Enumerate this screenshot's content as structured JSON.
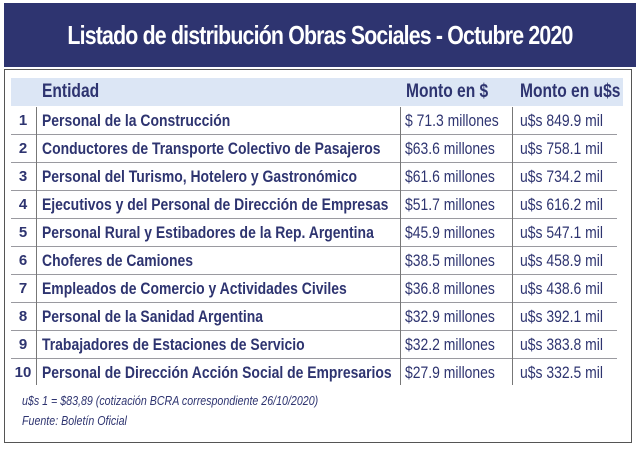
{
  "title": "Listado de distribución Obras Sociales - Octubre 2020",
  "table": {
    "headers": {
      "entity": "Entidad",
      "ars": "Monto en $",
      "usd": "Monto en u$s"
    },
    "rows": [
      {
        "num": "1",
        "name": "Personal de la Construcción",
        "ars": "$ 71.3 millones",
        "usd": "u$s 849.9 mil"
      },
      {
        "num": "2",
        "name": "Conductores de Transporte Colectivo de Pasajeros",
        "ars": "$63.6 millones",
        "usd": "u$s 758.1 mil"
      },
      {
        "num": "3",
        "name": "Personal del Turismo, Hotelero y Gastronómico",
        "ars": "$61.6 millones",
        "usd": "u$s 734.2 mil"
      },
      {
        "num": "4",
        "name": "Ejecutivos y del Personal de Dirección de Empresas",
        "ars": "$51.7 millones",
        "usd": "u$s 616.2 mil"
      },
      {
        "num": "5",
        "name": "Personal Rural y Estibadores de la Rep. Argentina",
        "ars": "$45.9 millones",
        "usd": "u$s 547.1 mil"
      },
      {
        "num": "6",
        "name": "Choferes de Camiones",
        "ars": "$38.5 millones",
        "usd": "u$s 458.9 mil"
      },
      {
        "num": "7",
        "name": "Empleados de Comercio y Actividades Civiles",
        "ars": "$36.8 millones",
        "usd": "u$s 438.6 mil"
      },
      {
        "num": "8",
        "name": "Personal de la Sanidad Argentina",
        "ars": "$32.9 millones",
        "usd": "u$s 392.1 mil"
      },
      {
        "num": "9",
        "name": "Trabajadores de Estaciones de Servicio",
        "ars": "$32.2 millones",
        "usd": "u$s 383.8 mil"
      },
      {
        "num": "10",
        "name": "Personal de Dirección Acción Social de Empresarios",
        "ars": "$27.9 millones",
        "usd": "u$s 332.5 mil"
      }
    ]
  },
  "footnotes": {
    "exchange": "u$s 1 = $83,89 (cotización BCRA correspondiente 26/10/2020)",
    "source": "Fuente: Boletín Oficial"
  },
  "colors": {
    "navy": "#2e3470",
    "header_bg": "#dce6f5"
  }
}
